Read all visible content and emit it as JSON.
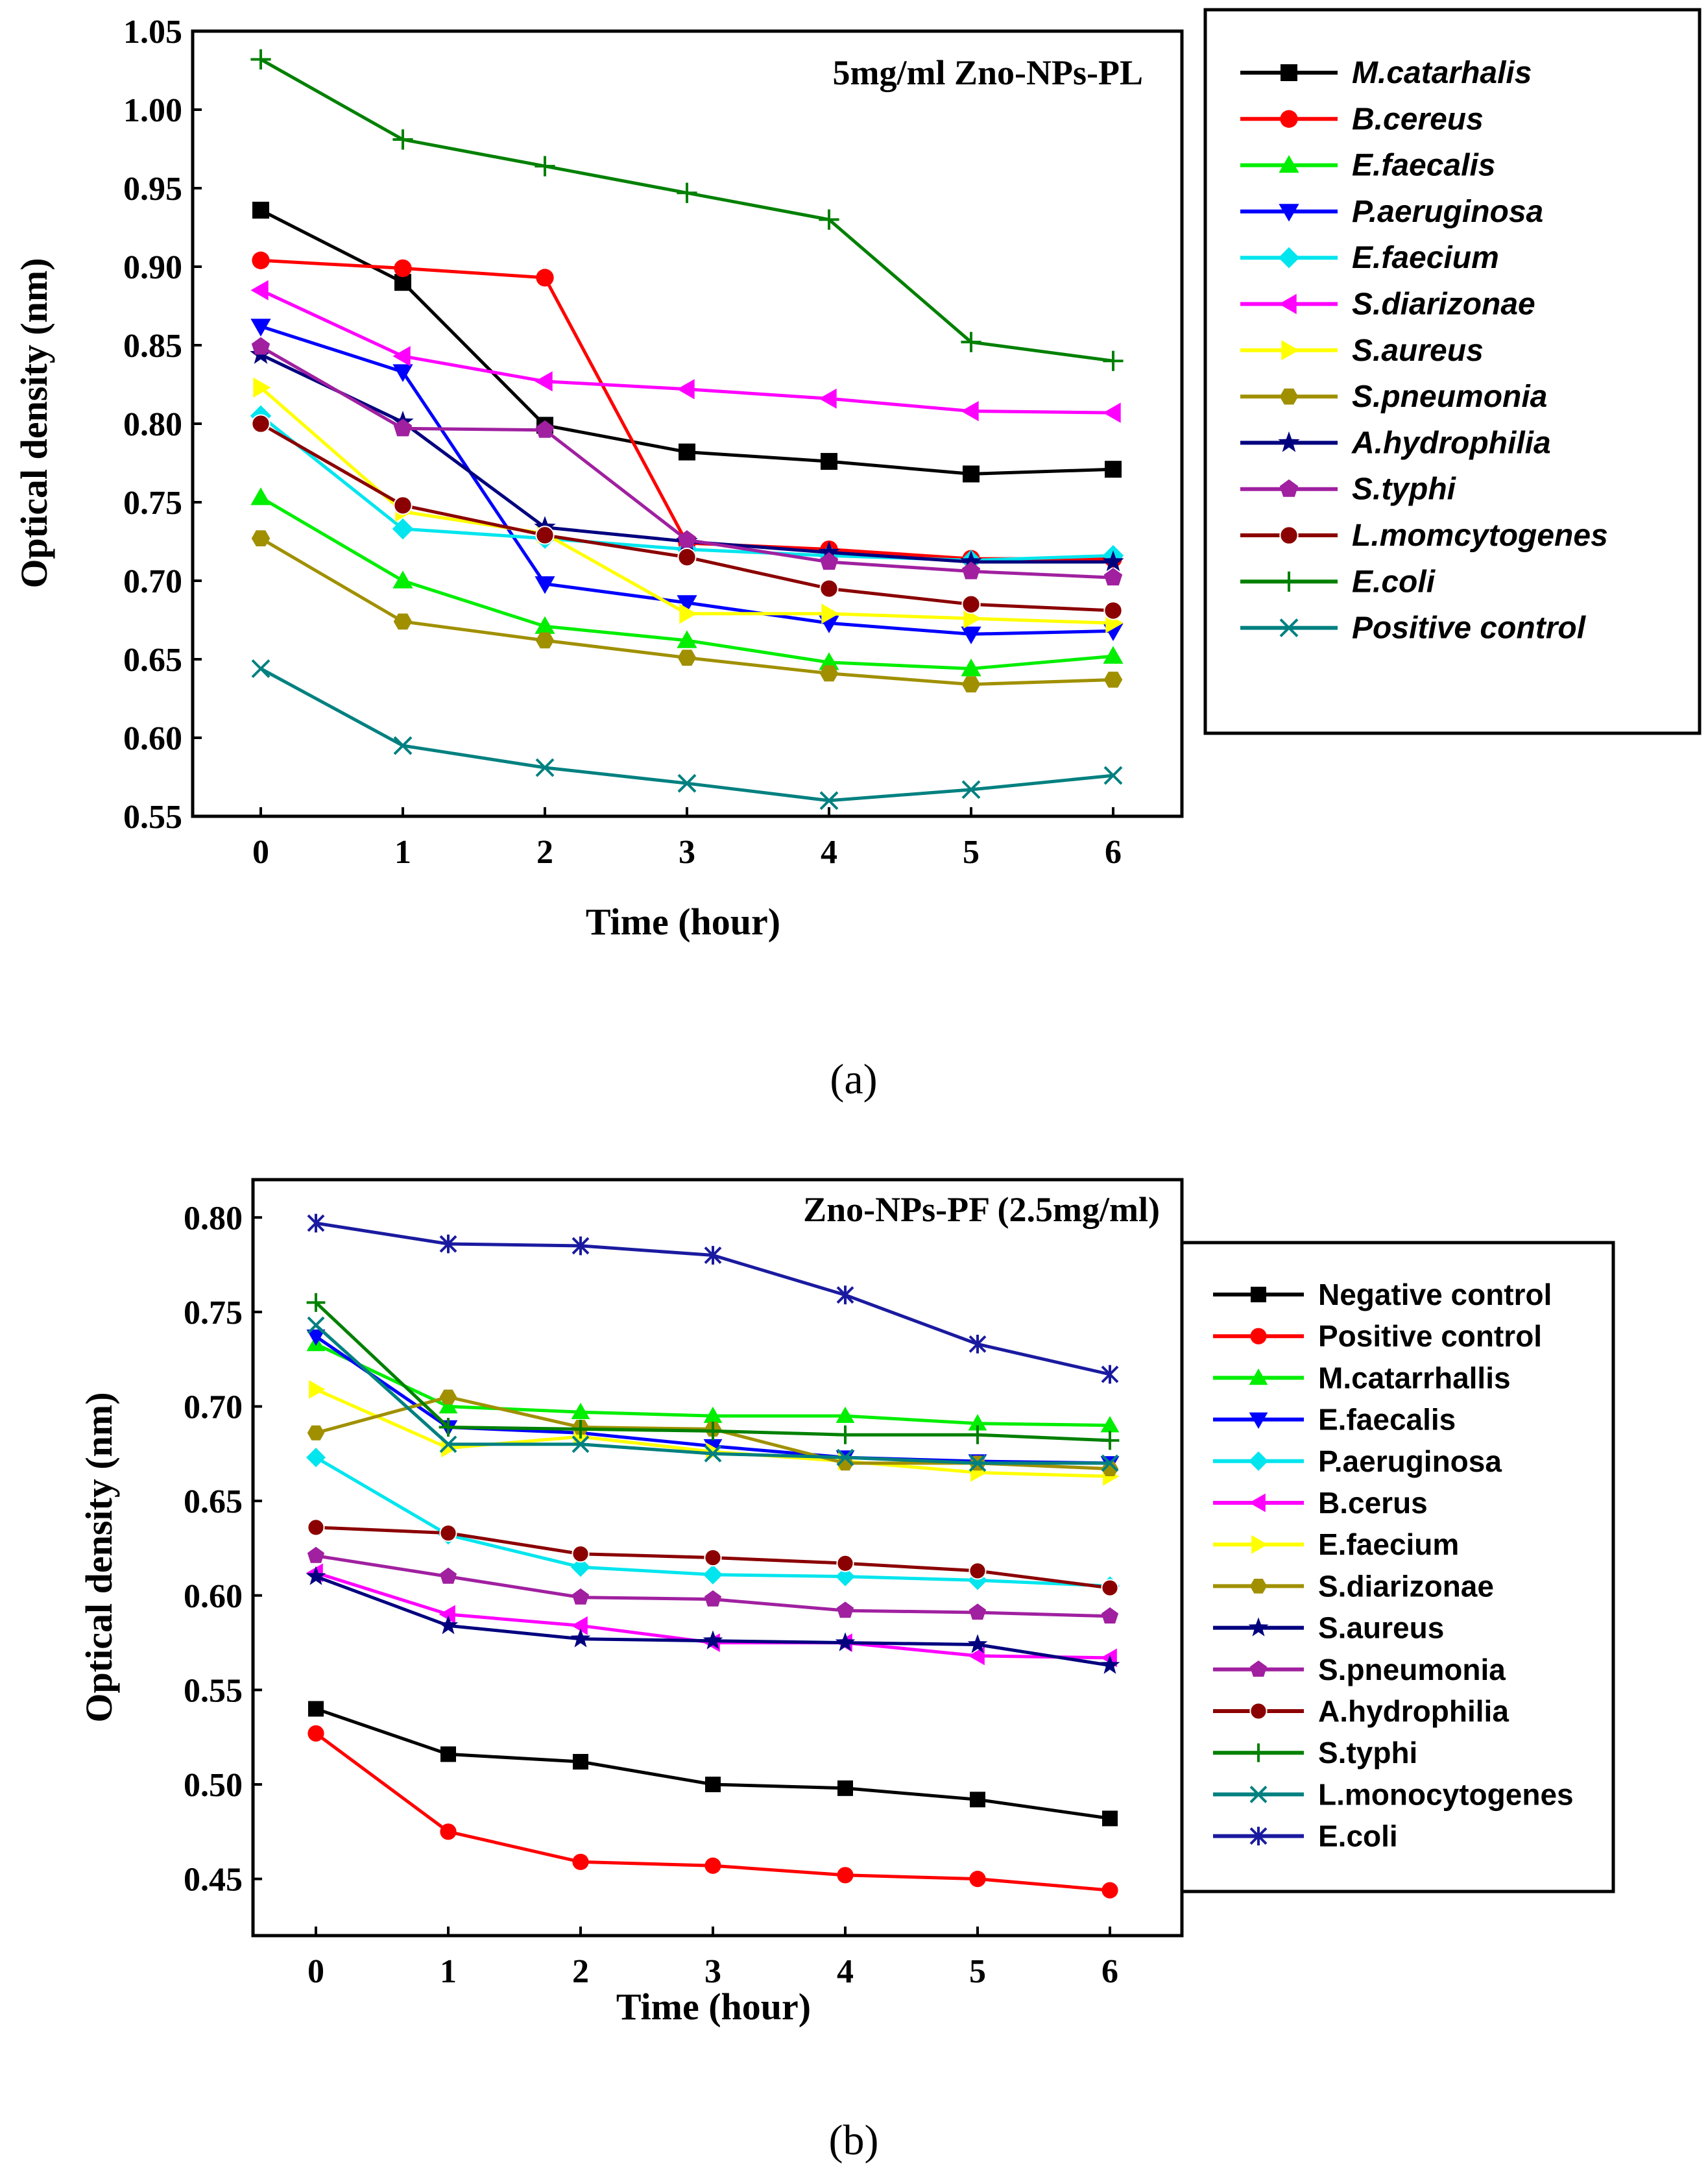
{
  "chart_data": [
    {
      "type": "line",
      "panel_label": "(a)",
      "annotation": "5mg/ml Zno-NPs-PL",
      "xlabel": "Time (hour)",
      "ylabel": "Optical density (nm)",
      "x": [
        0,
        1,
        2,
        3,
        4,
        5,
        6
      ],
      "x_ticks": [
        "0",
        "1",
        "2",
        "3",
        "4",
        "5",
        "6"
      ],
      "ylim": [
        0.55,
        1.05
      ],
      "y_ticks": [
        "0.55",
        "0.60",
        "0.65",
        "0.70",
        "0.75",
        "0.80",
        "0.85",
        "0.90",
        "0.95",
        "1.00",
        "1.05"
      ],
      "legend_position": "right",
      "series": [
        {
          "name": "M.catarhalis",
          "color": "#000000",
          "marker": "square",
          "values": [
            0.936,
            0.89,
            0.799,
            0.782,
            0.776,
            0.768,
            0.771
          ]
        },
        {
          "name": "B.cereus",
          "color": "#ff0000",
          "marker": "circle",
          "values": [
            0.904,
            0.899,
            0.893,
            0.724,
            0.72,
            0.714,
            0.714
          ]
        },
        {
          "name": "E.faecalis",
          "color": "#00ee00",
          "marker": "triangle-up",
          "values": [
            0.753,
            0.7,
            0.671,
            0.662,
            0.648,
            0.644,
            0.652
          ]
        },
        {
          "name": "P.aeruginosa",
          "color": "#0000ff",
          "marker": "triangle-down",
          "values": [
            0.862,
            0.833,
            0.698,
            0.686,
            0.673,
            0.666,
            0.668
          ]
        },
        {
          "name": "E.faecium",
          "color": "#00e5ee",
          "marker": "diamond",
          "values": [
            0.805,
            0.733,
            0.727,
            0.72,
            0.716,
            0.713,
            0.716
          ]
        },
        {
          "name": "S.diarizonae",
          "color": "#ff00ff",
          "marker": "triangle-left",
          "values": [
            0.885,
            0.843,
            0.827,
            0.822,
            0.816,
            0.808,
            0.807
          ]
        },
        {
          "name": "S.aureus",
          "color": "#ffff00",
          "marker": "triangle-right",
          "values": [
            0.823,
            0.744,
            0.73,
            0.679,
            0.679,
            0.676,
            0.673
          ]
        },
        {
          "name": "S.pneumonia",
          "color": "#a09000",
          "marker": "hexagon",
          "values": [
            0.727,
            0.674,
            0.662,
            0.651,
            0.641,
            0.634,
            0.637
          ]
        },
        {
          "name": "A.hydrophilia",
          "color": "#00007f",
          "marker": "star",
          "values": [
            0.844,
            0.801,
            0.734,
            0.725,
            0.718,
            0.712,
            0.712
          ]
        },
        {
          "name": "S.typhi",
          "color": "#a020a0",
          "marker": "pentagon",
          "values": [
            0.849,
            0.797,
            0.796,
            0.726,
            0.712,
            0.706,
            0.702
          ]
        },
        {
          "name": "L.momcytogenes",
          "color": "#8b0000",
          "marker": "half-circle",
          "values": [
            0.8,
            0.748,
            0.729,
            0.715,
            0.695,
            0.685,
            0.681
          ]
        },
        {
          "name": "E.coli",
          "color": "#008000",
          "marker": "plus",
          "values": [
            1.032,
            0.981,
            0.964,
            0.947,
            0.93,
            0.852,
            0.84
          ]
        },
        {
          "name": "Positive control",
          "color": "#008080",
          "marker": "x",
          "values": [
            0.644,
            0.595,
            0.581,
            0.571,
            0.56,
            0.567,
            0.576
          ]
        }
      ]
    },
    {
      "type": "line",
      "panel_label": "(b)",
      "annotation": "Zno-NPs-PF (2.5mg/ml)",
      "xlabel": "Time (hour)",
      "ylabel": "Optical density (nm)",
      "x": [
        0,
        1,
        2,
        3,
        4,
        5,
        6
      ],
      "x_ticks": [
        "0",
        "1",
        "2",
        "3",
        "4",
        "5",
        "6"
      ],
      "ylim": [
        0.42,
        0.82
      ],
      "y_ticks": [
        "0.45",
        "0.50",
        "0.55",
        "0.60",
        "0.65",
        "0.70",
        "0.75",
        "0.80"
      ],
      "legend_position": "right",
      "series": [
        {
          "name": "Negative control",
          "color": "#000000",
          "marker": "square",
          "values": [
            0.54,
            0.516,
            0.512,
            0.5,
            0.498,
            0.492,
            0.482
          ]
        },
        {
          "name": "Positive control",
          "color": "#ff0000",
          "marker": "circle",
          "values": [
            0.527,
            0.475,
            0.459,
            0.457,
            0.452,
            0.45,
            0.444
          ]
        },
        {
          "name": "M.catarrhallis",
          "color": "#00ee00",
          "marker": "triangle-up",
          "values": [
            0.733,
            0.7,
            0.697,
            0.695,
            0.695,
            0.691,
            0.69
          ]
        },
        {
          "name": "E.faecalis",
          "color": "#0000ff",
          "marker": "triangle-down",
          "values": [
            0.737,
            0.689,
            0.686,
            0.679,
            0.673,
            0.671,
            0.67
          ]
        },
        {
          "name": "P.aeruginosa",
          "color": "#00e5ee",
          "marker": "diamond",
          "values": [
            0.673,
            0.632,
            0.615,
            0.611,
            0.61,
            0.608,
            0.605
          ]
        },
        {
          "name": "B.cerus",
          "color": "#ff00ff",
          "marker": "triangle-left",
          "values": [
            0.612,
            0.59,
            0.584,
            0.575,
            0.575,
            0.568,
            0.567
          ]
        },
        {
          "name": "E.faecium",
          "color": "#ffff00",
          "marker": "triangle-right",
          "values": [
            0.709,
            0.678,
            0.684,
            0.676,
            0.671,
            0.665,
            0.663
          ]
        },
        {
          "name": "S.diarizonae",
          "color": "#a09000",
          "marker": "hexagon",
          "values": [
            0.686,
            0.705,
            0.689,
            0.688,
            0.67,
            0.67,
            0.667
          ]
        },
        {
          "name": "S.aureus",
          "color": "#00007f",
          "marker": "star",
          "values": [
            0.61,
            0.584,
            0.577,
            0.576,
            0.575,
            0.574,
            0.563
          ]
        },
        {
          "name": "S.pneumonia",
          "color": "#a020a0",
          "marker": "pentagon",
          "values": [
            0.621,
            0.61,
            0.599,
            0.598,
            0.592,
            0.591,
            0.589
          ]
        },
        {
          "name": "A.hydrophilia",
          "color": "#8b0000",
          "marker": "half-circle",
          "values": [
            0.636,
            0.633,
            0.622,
            0.62,
            0.617,
            0.613,
            0.604
          ]
        },
        {
          "name": "S.typhi",
          "color": "#008000",
          "marker": "plus",
          "values": [
            0.755,
            0.689,
            0.688,
            0.687,
            0.685,
            0.685,
            0.682
          ]
        },
        {
          "name": "L.monocytogenes",
          "color": "#008080",
          "marker": "x",
          "values": [
            0.743,
            0.68,
            0.68,
            0.675,
            0.673,
            0.67,
            0.67
          ]
        },
        {
          "name": "E.coli",
          "color": "#1a1aa0",
          "marker": "asterisk",
          "values": [
            0.797,
            0.786,
            0.785,
            0.78,
            0.759,
            0.733,
            0.717
          ]
        }
      ]
    }
  ]
}
